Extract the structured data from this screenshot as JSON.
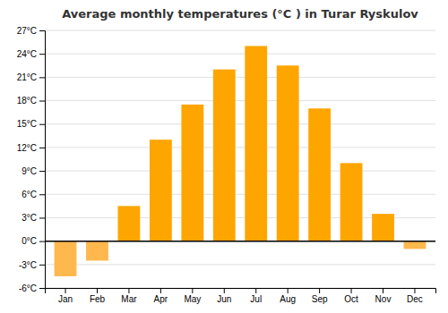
{
  "chart_data": {
    "type": "bar",
    "title": "Average monthly temperatures (°C ) in Turar Ryskulov",
    "categories": [
      "Jan",
      "Feb",
      "Mar",
      "Apr",
      "May",
      "Jun",
      "Jul",
      "Aug",
      "Sep",
      "Oct",
      "Nov",
      "Dec"
    ],
    "values": [
      -4.5,
      -2.5,
      4.5,
      13.0,
      17.5,
      22.0,
      25.0,
      22.5,
      17.0,
      10.0,
      3.5,
      -1.0
    ],
    "colors": [
      "#FFB84D",
      "#FFB84D",
      "#FFA500",
      "#FFA500",
      "#FFA500",
      "#FFA500",
      "#FFA500",
      "#FFA500",
      "#FFA500",
      "#FFA500",
      "#FFA500",
      "#FFB84D"
    ],
    "ylim": [
      -6,
      27
    ],
    "yticks": [
      {
        "value": -6,
        "label": "-6°C"
      },
      {
        "value": -3,
        "label": "-3°C"
      },
      {
        "value": 0,
        "label": "0°C"
      },
      {
        "value": 3,
        "label": "3°C"
      },
      {
        "value": 6,
        "label": "6°C"
      },
      {
        "value": 9,
        "label": "9°C"
      },
      {
        "value": 12,
        "label": "12°C"
      },
      {
        "value": 15,
        "label": "15°C"
      },
      {
        "value": 18,
        "label": "18°C"
      },
      {
        "value": 21,
        "label": "21°C"
      },
      {
        "value": 24,
        "label": "24°C"
      },
      {
        "value": 27,
        "label": "27°C"
      }
    ],
    "grid": true
  }
}
